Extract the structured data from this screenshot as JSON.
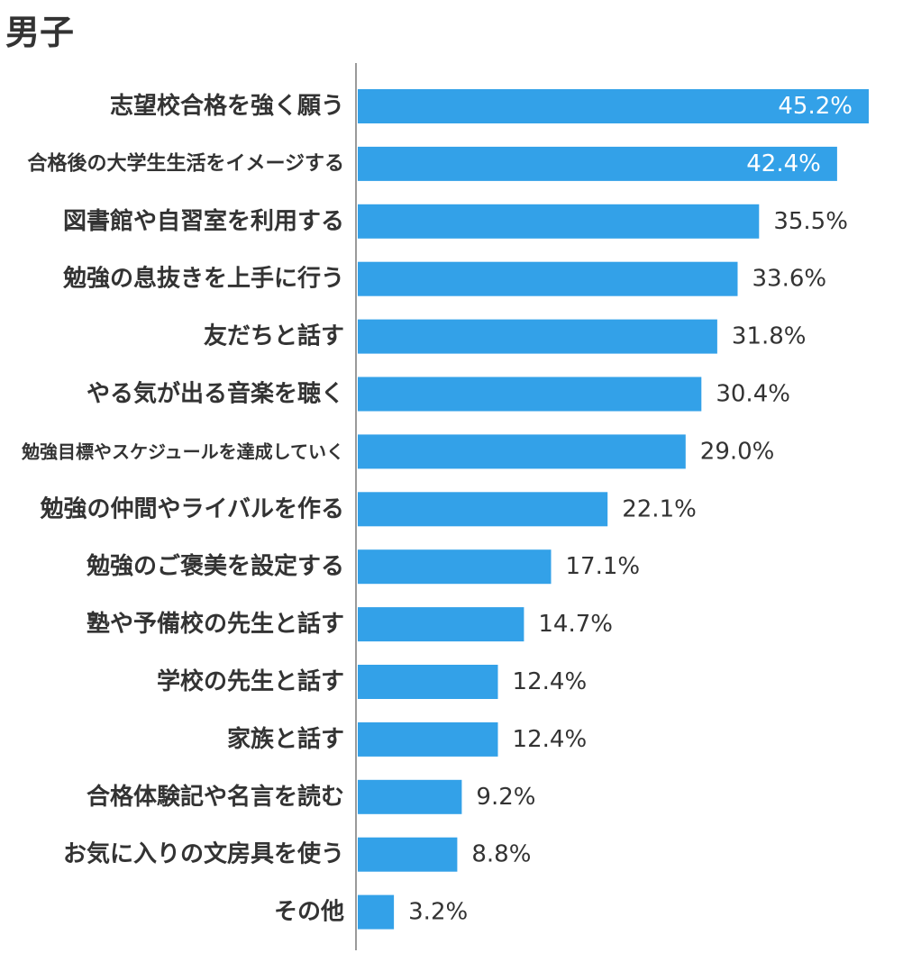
{
  "colors": {
    "bar": "#33a1e8",
    "axis": "#9a9a9a",
    "label_text": "#333333",
    "inner_value_text": "#ffffff"
  },
  "chart_data": {
    "type": "bar",
    "orientation": "horizontal",
    "title": "男子",
    "xlim": [
      0,
      46
    ],
    "grid": false,
    "value_format": "{v}%",
    "categories": [
      "志望校合格を強く願う",
      "合格後の大学生生活をイメージする",
      "図書館や自習室を利用する",
      "勉強の息抜きを上手に行う",
      "友だちと話す",
      "やる気が出る音楽を聴く",
      "勉強目標やスケジュールを達成していく",
      "勉強の仲間やライバルを作る",
      "勉強のご褒美を設定する",
      "塾や予備校の先生と話す",
      "学校の先生と話す",
      "家族と話す",
      "合格体験記や名言を読む",
      "お気に入りの文房具を使う",
      "その他"
    ],
    "values": [
      45.2,
      42.4,
      35.5,
      33.6,
      31.8,
      30.4,
      29.0,
      22.1,
      17.1,
      14.7,
      12.4,
      12.4,
      9.2,
      8.8,
      3.2
    ],
    "data_labels": [
      "45.2%",
      "42.4%",
      "35.5%",
      "33.6%",
      "31.8%",
      "30.4%",
      "29.0%",
      "22.1%",
      "17.1%",
      "14.7%",
      "12.4%",
      "12.4%",
      "9.2%",
      "8.8%",
      "3.2%"
    ]
  }
}
